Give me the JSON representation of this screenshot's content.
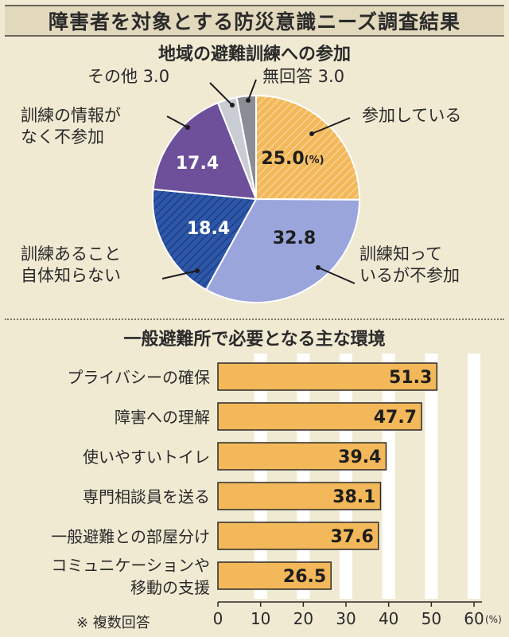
{
  "title": "障害者を対象とする防災意識ニーズ調査結果",
  "colors": {
    "orange": "#f3b85a",
    "lavender": "#9aa5dc",
    "blue": "#2f57a8",
    "purple": "#6d4f9a",
    "light_gray": "#c9ccd3",
    "gray": "#8a8d96"
  },
  "chart_data": [
    {
      "type": "pie",
      "title": "地域の避難訓練への参加",
      "unit": "(%)",
      "slices": [
        {
          "label": "参加している",
          "value": 25.0,
          "value_text": "25.0",
          "color": "#f3b85a",
          "pattern": "hatch-light",
          "label_lines": [
            "参加している"
          ]
        },
        {
          "label": "訓練知っているが不参加",
          "value": 32.8,
          "value_text": "32.8",
          "color": "#9aa5dc",
          "pattern": "none",
          "label_lines": [
            "訓練知って",
            "いるが不参加"
          ]
        },
        {
          "label": "訓練あること自体知らない",
          "value": 18.4,
          "value_text": "18.4",
          "color": "#2f57a8",
          "pattern": "hatch-dark",
          "label_lines": [
            "訓練あること",
            "自体知らない"
          ]
        },
        {
          "label": "訓練の情報がなく不参加",
          "value": 17.4,
          "value_text": "17.4",
          "color": "#6d4f9a",
          "pattern": "none",
          "label_lines": [
            "訓練の情報が",
            "なく不参加"
          ]
        },
        {
          "label": "その他",
          "value": 3.0,
          "value_text": "3.0",
          "color": "#c9ccd3",
          "pattern": "none",
          "label_lines": [
            "その他 3.0"
          ]
        },
        {
          "label": "無回答",
          "value": 3.0,
          "value_text": "3.0",
          "color": "#8a8d96",
          "pattern": "none",
          "label_lines": [
            "無回答 3.0"
          ]
        }
      ]
    },
    {
      "type": "bar",
      "orientation": "horizontal",
      "title": "一般避難所で必要となる主な環境",
      "note": "※ 複数回答",
      "unit": "(%)",
      "xlim": [
        0,
        60
      ],
      "ticks": [
        0,
        10,
        20,
        30,
        40,
        50,
        60
      ],
      "bar_color": "#f3b85a",
      "categories": [
        [
          "プライバシーの確保"
        ],
        [
          "障害への理解"
        ],
        [
          "使いやすいトイレ"
        ],
        [
          "専門相談員を送る"
        ],
        [
          "一般避難との部屋分け"
        ],
        [
          "コミュニケーションや",
          "移動の支援"
        ]
      ],
      "values": [
        51.3,
        47.7,
        39.4,
        38.1,
        37.6,
        26.5
      ]
    }
  ]
}
